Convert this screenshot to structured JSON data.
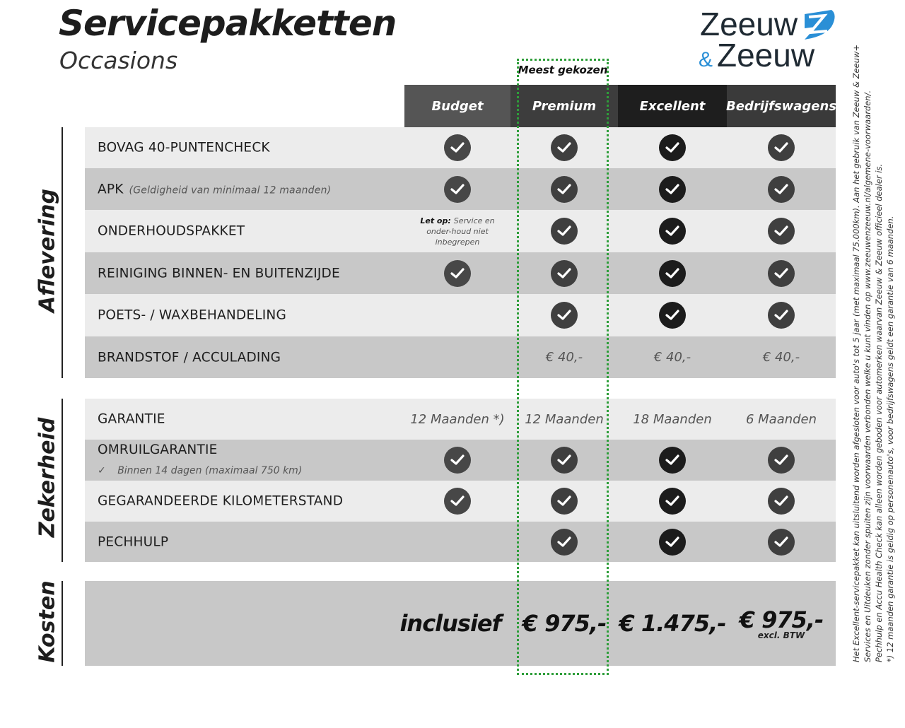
{
  "header": {
    "title": "Servicepakketten",
    "subtitle": "Occasions",
    "logo_text": "Zeeuw & Zeeuw",
    "highlight_label": "Meest gekozen"
  },
  "colors": {
    "highlight": "#2e9e3a",
    "logo_blue": "#2a8fd6",
    "logo_dark": "#1f2a33"
  },
  "columns": [
    {
      "label": "Budget",
      "bg": "#555555",
      "check": "#474747"
    },
    {
      "label": "Premium",
      "bg": "#3d3d3d",
      "check": "#3f3f3f"
    },
    {
      "label": "Excellent",
      "bg": "#1e1e1e",
      "check": "#1c1c1c"
    },
    {
      "label": "Bedrijfswagens",
      "bg": "#3a3a3a",
      "check": "#3f3f3f"
    }
  ],
  "sections": [
    {
      "label": "Aflevering",
      "rows": [
        {
          "label": "BOVAG 40-PUNTENCHECK",
          "cells": [
            "check",
            "check",
            "check",
            "check"
          ]
        },
        {
          "label": "APK",
          "sub": "(Geldigheid van minimaal 12 maanden)",
          "cells": [
            "check",
            "check",
            "check",
            "check"
          ]
        },
        {
          "label": "ONDERHOUDSPAKKET",
          "cells": [
            "",
            "check",
            "check",
            "check"
          ],
          "budget_note_bold": "Let op:",
          "budget_note": "Service en onder-houd niet inbegrepen"
        },
        {
          "label": "REINIGING BINNEN- EN BUITENZIJDE",
          "cells": [
            "check",
            "check",
            "check",
            "check"
          ]
        },
        {
          "label": "POETS- / WAXBEHANDELING",
          "cells": [
            "",
            "check",
            "check",
            "check"
          ]
        },
        {
          "label": "BRANDSTOF / ACCULADING",
          "cells": [
            "",
            "€ 40,-",
            "€ 40,-",
            "€ 40,-"
          ]
        }
      ]
    },
    {
      "label": "Zekerheid",
      "rows": [
        {
          "label": "GARANTIE",
          "cells": [
            "12 Maanden *)",
            "12 Maanden",
            "18 Maanden",
            "6 Maanden"
          ]
        },
        {
          "label": "OMRUILGARANTIE",
          "sub2": "Binnen 14 dagen (maximaal 750 km)",
          "cells": [
            "check",
            "check",
            "check",
            "check"
          ]
        },
        {
          "label": "GEGARANDEERDE KILOMETERSTAND",
          "cells": [
            "check",
            "check",
            "check",
            "check"
          ]
        },
        {
          "label": "PECHHULP",
          "cells": [
            "",
            "check",
            "check",
            "check"
          ]
        }
      ]
    },
    {
      "label": "Kosten",
      "prices": [
        "inclusief",
        "€ 975,-",
        "€ 1.475,-",
        "€ 975,-"
      ],
      "price_note": "excl. BTW"
    }
  ],
  "legal": [
    "Het Excellent-servicepakket kan uitsluitend worden afgesloten voor auto's tot 5 jaar (met maximaal 75.000km). Aan het gebruik van Zeeuw & Zeeuw+",
    "Services en Uitdeuken zonder spuiten zijn voorwaarden verbonden welke u kunt vinden op www.zeeuwenzeeuw.nl/algemene-voorwaarden/.",
    "Pechhulp en Accu Health Check kan alleen worden geboden voor automerken waarvan Zeeuw & Zeeuw officieel dealer is.",
    "*) 12 maanden garantie is geldig op personenauto's, voor bedrijfswagens geldt een garantie van 6 maanden."
  ]
}
